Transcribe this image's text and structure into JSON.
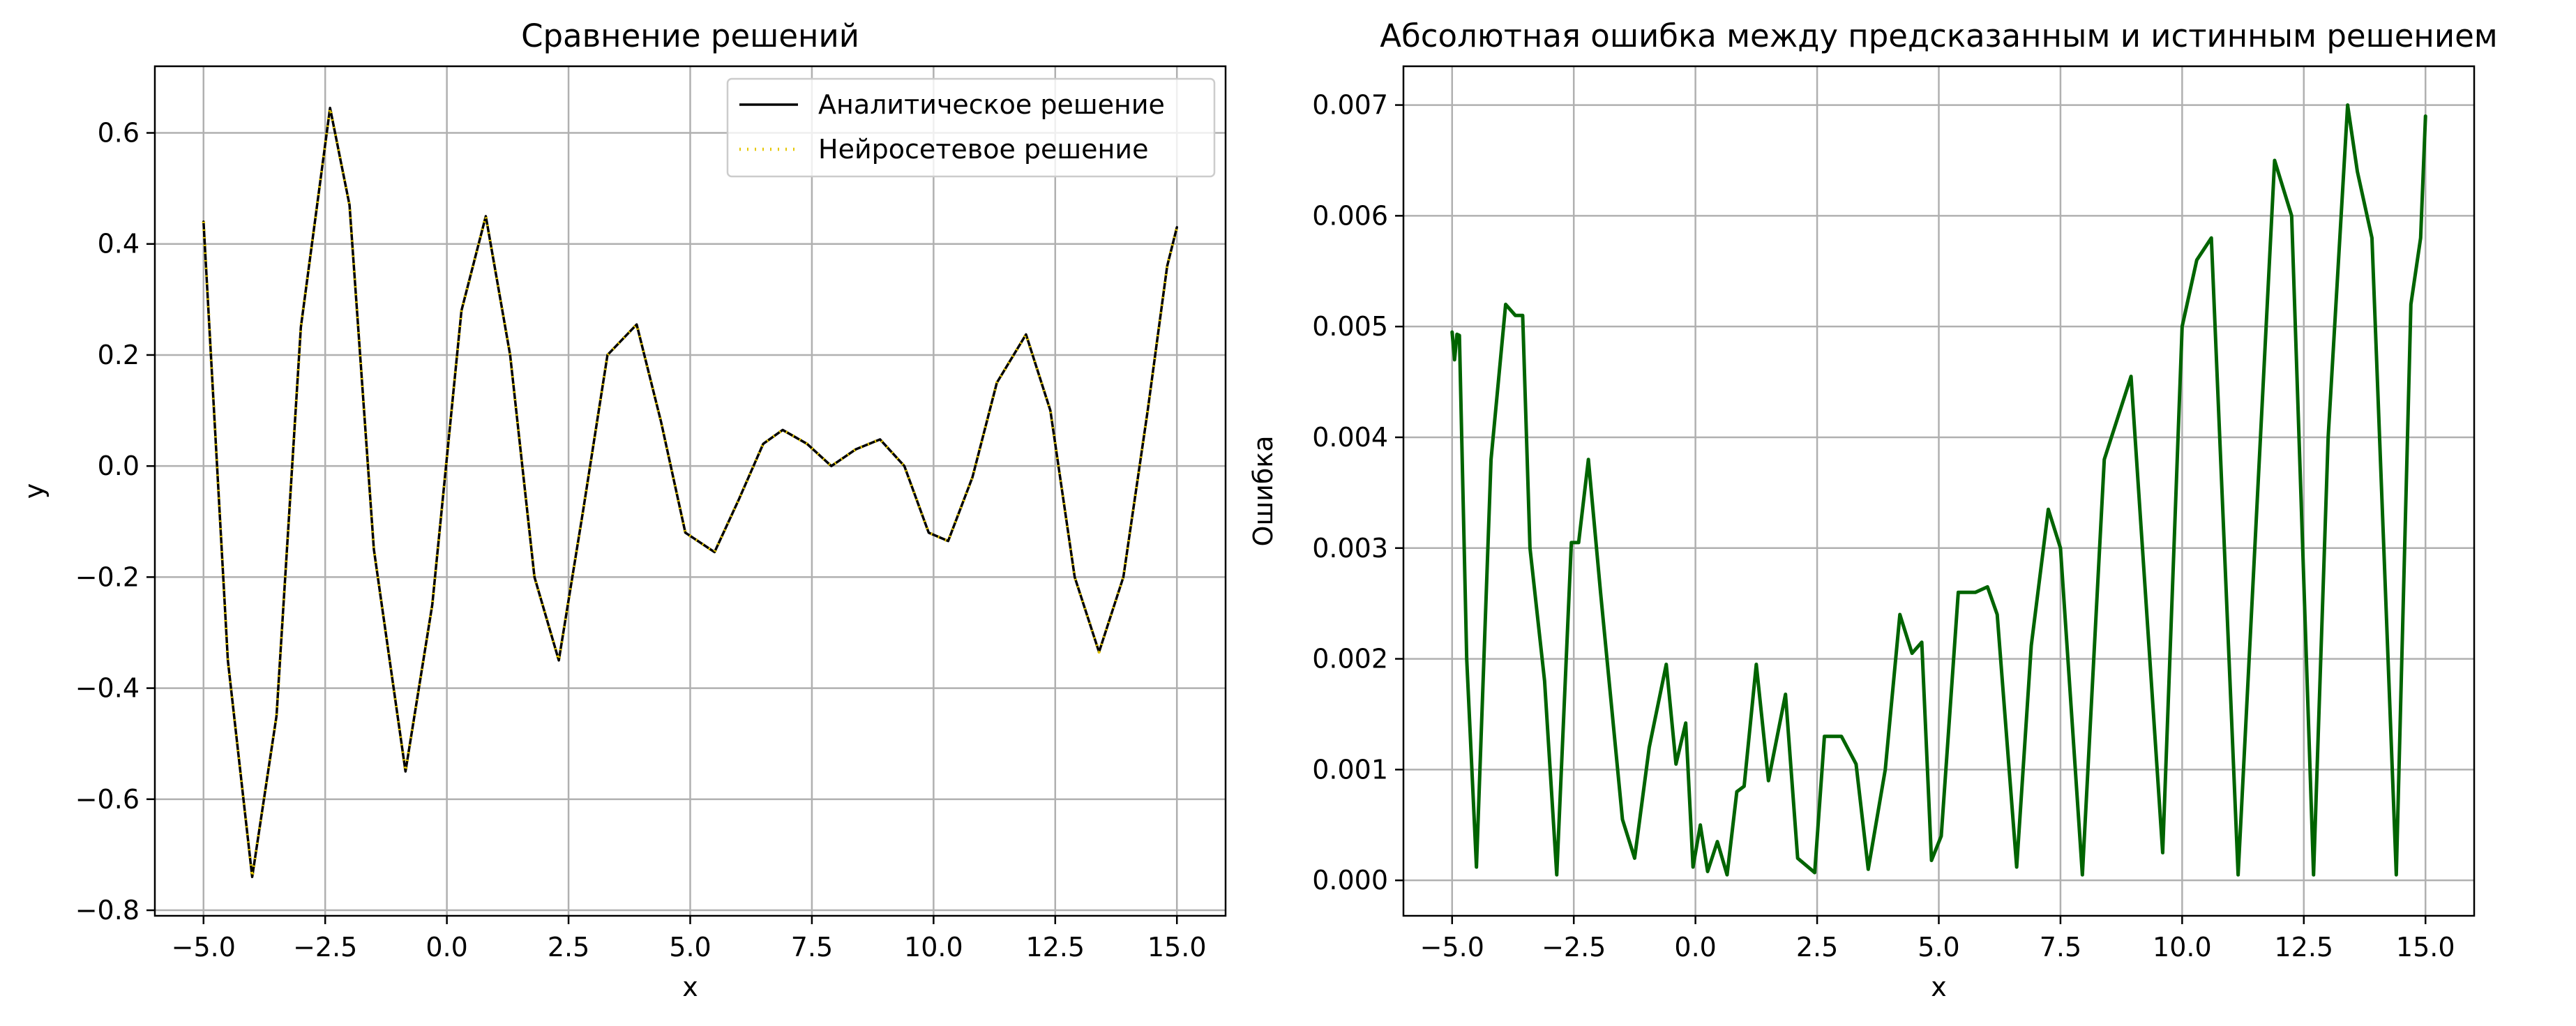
{
  "chart_data": [
    {
      "type": "line",
      "title": "Сравнение решений",
      "xlabel": "x",
      "ylabel": "y",
      "xlim": [
        -6.0,
        16.0
      ],
      "ylim": [
        -0.81,
        0.72
      ],
      "xticks": [
        -5.0,
        -2.5,
        0.0,
        2.5,
        5.0,
        7.5,
        10.0,
        12.5,
        15.0
      ],
      "xtick_labels": [
        "−5.0",
        "−2.5",
        "0.0",
        "2.5",
        "5.0",
        "7.5",
        "10.0",
        "12.5",
        "15.0"
      ],
      "yticks": [
        -0.8,
        -0.6,
        -0.4,
        -0.2,
        0.0,
        0.2,
        0.4,
        0.6
      ],
      "ytick_labels": [
        "−0.8",
        "−0.6",
        "−0.4",
        "−0.2",
        "0.0",
        "0.2",
        "0.4",
        "0.6"
      ],
      "grid": true,
      "legend_position": "top-right",
      "series": [
        {
          "name": "Аналитическое решение",
          "color": "#000000",
          "style": "solid",
          "x": [
            -5.0,
            -4.5,
            -4.0,
            -3.5,
            -3.0,
            -2.4,
            -2.0,
            -1.5,
            -0.85,
            -0.3,
            0.3,
            0.8,
            1.3,
            1.8,
            2.3,
            2.8,
            3.3,
            3.9,
            4.4,
            4.9,
            5.5,
            6.0,
            6.5,
            6.9,
            7.4,
            7.9,
            8.4,
            8.9,
            9.4,
            9.9,
            10.3,
            10.8,
            11.3,
            11.9,
            12.4,
            12.9,
            13.4,
            13.9,
            14.4,
            14.8,
            15.0
          ],
          "y": [
            0.44,
            -0.35,
            -0.74,
            -0.45,
            0.25,
            0.645,
            0.47,
            -0.15,
            -0.55,
            -0.25,
            0.28,
            0.45,
            0.2,
            -0.2,
            -0.35,
            -0.08,
            0.2,
            0.255,
            0.08,
            -0.12,
            -0.155,
            -0.06,
            0.04,
            0.065,
            0.04,
            0.0,
            0.03,
            0.048,
            0.0,
            -0.12,
            -0.135,
            -0.02,
            0.15,
            0.237,
            0.1,
            -0.2,
            -0.335,
            -0.2,
            0.1,
            0.36,
            0.43
          ]
        },
        {
          "name": "Нейросетевое решение",
          "color": "#e6c800",
          "style": "dotted",
          "x": [
            -5.0,
            -4.5,
            -4.0,
            -3.5,
            -3.0,
            -2.4,
            -2.0,
            -1.5,
            -0.85,
            -0.3,
            0.3,
            0.8,
            1.3,
            1.8,
            2.3,
            2.8,
            3.3,
            3.9,
            4.4,
            4.9,
            5.5,
            6.0,
            6.5,
            6.9,
            7.4,
            7.9,
            8.4,
            8.9,
            9.4,
            9.9,
            10.3,
            10.8,
            11.3,
            11.9,
            12.4,
            12.9,
            13.4,
            13.9,
            14.4,
            14.8,
            15.0
          ],
          "y": [
            0.44,
            -0.35,
            -0.74,
            -0.45,
            0.25,
            0.645,
            0.47,
            -0.15,
            -0.55,
            -0.25,
            0.28,
            0.45,
            0.2,
            -0.2,
            -0.35,
            -0.08,
            0.2,
            0.255,
            0.08,
            -0.12,
            -0.155,
            -0.06,
            0.04,
            0.065,
            0.04,
            0.0,
            0.03,
            0.048,
            0.0,
            -0.12,
            -0.135,
            -0.02,
            0.15,
            0.237,
            0.1,
            -0.2,
            -0.335,
            -0.2,
            0.1,
            0.36,
            0.43
          ]
        }
      ]
    },
    {
      "type": "line",
      "title": "Абсолютная ошибка между предсказанным и истинным решением",
      "xlabel": "x",
      "ylabel": "Ошибка",
      "xlim": [
        -6.0,
        16.0
      ],
      "ylim": [
        -0.00032,
        0.00735
      ],
      "xticks": [
        -5.0,
        -2.5,
        0.0,
        2.5,
        5.0,
        7.5,
        10.0,
        12.5,
        15.0
      ],
      "xtick_labels": [
        "−5.0",
        "−2.5",
        "0.0",
        "2.5",
        "5.0",
        "7.5",
        "10.0",
        "12.5",
        "15.0"
      ],
      "yticks": [
        0.0,
        0.001,
        0.002,
        0.003,
        0.004,
        0.005,
        0.006,
        0.007
      ],
      "ytick_labels": [
        "0.000",
        "0.001",
        "0.002",
        "0.003",
        "0.004",
        "0.005",
        "0.006",
        "0.007"
      ],
      "grid": true,
      "series": [
        {
          "color": "#006400",
          "style": "solid",
          "x": [
            -5.0,
            -4.95,
            -4.9,
            -4.85,
            -4.7,
            -4.5,
            -4.2,
            -3.9,
            -3.7,
            -3.55,
            -3.4,
            -3.1,
            -2.85,
            -2.55,
            -2.4,
            -2.2,
            -1.95,
            -1.5,
            -1.25,
            -0.95,
            -0.6,
            -0.4,
            -0.2,
            -0.05,
            0.1,
            0.25,
            0.45,
            0.65,
            0.85,
            1.0,
            1.25,
            1.5,
            1.85,
            2.1,
            2.45,
            2.65,
            3.0,
            3.3,
            3.55,
            3.9,
            4.2,
            4.45,
            4.65,
            4.85,
            5.05,
            5.4,
            5.75,
            6.0,
            6.2,
            6.6,
            6.9,
            7.25,
            7.5,
            7.95,
            8.4,
            8.95,
            9.6,
            10.0,
            10.3,
            10.6,
            11.15,
            11.9,
            12.25,
            12.7,
            13.0,
            13.4,
            13.6,
            13.9,
            14.4,
            14.7,
            14.9,
            15.0
          ],
          "y": [
            0.00495,
            0.0047,
            0.00493,
            0.00492,
            0.002,
            0.00012,
            0.0038,
            0.0052,
            0.0051,
            0.0051,
            0.003,
            0.0018,
            5e-05,
            0.00305,
            0.00305,
            0.0038,
            0.0026,
            0.00055,
            0.0002,
            0.0012,
            0.00195,
            0.00105,
            0.00142,
            0.00012,
            0.0005,
            8e-05,
            0.00035,
            5e-05,
            0.0008,
            0.00085,
            0.00195,
            0.0009,
            0.00168,
            0.0002,
            7e-05,
            0.0013,
            0.0013,
            0.00105,
            0.0001,
            0.001,
            0.0024,
            0.00205,
            0.00215,
            0.00018,
            0.0004,
            0.0026,
            0.0026,
            0.00265,
            0.0024,
            0.00012,
            0.00212,
            0.00335,
            0.003,
            5e-05,
            0.0038,
            0.00455,
            0.00025,
            0.005,
            0.0056,
            0.0058,
            5e-05,
            0.0065,
            0.006,
            5e-05,
            0.004,
            0.007,
            0.0064,
            0.0058,
            5e-05,
            0.0052,
            0.0058,
            0.0069
          ]
        }
      ]
    }
  ]
}
